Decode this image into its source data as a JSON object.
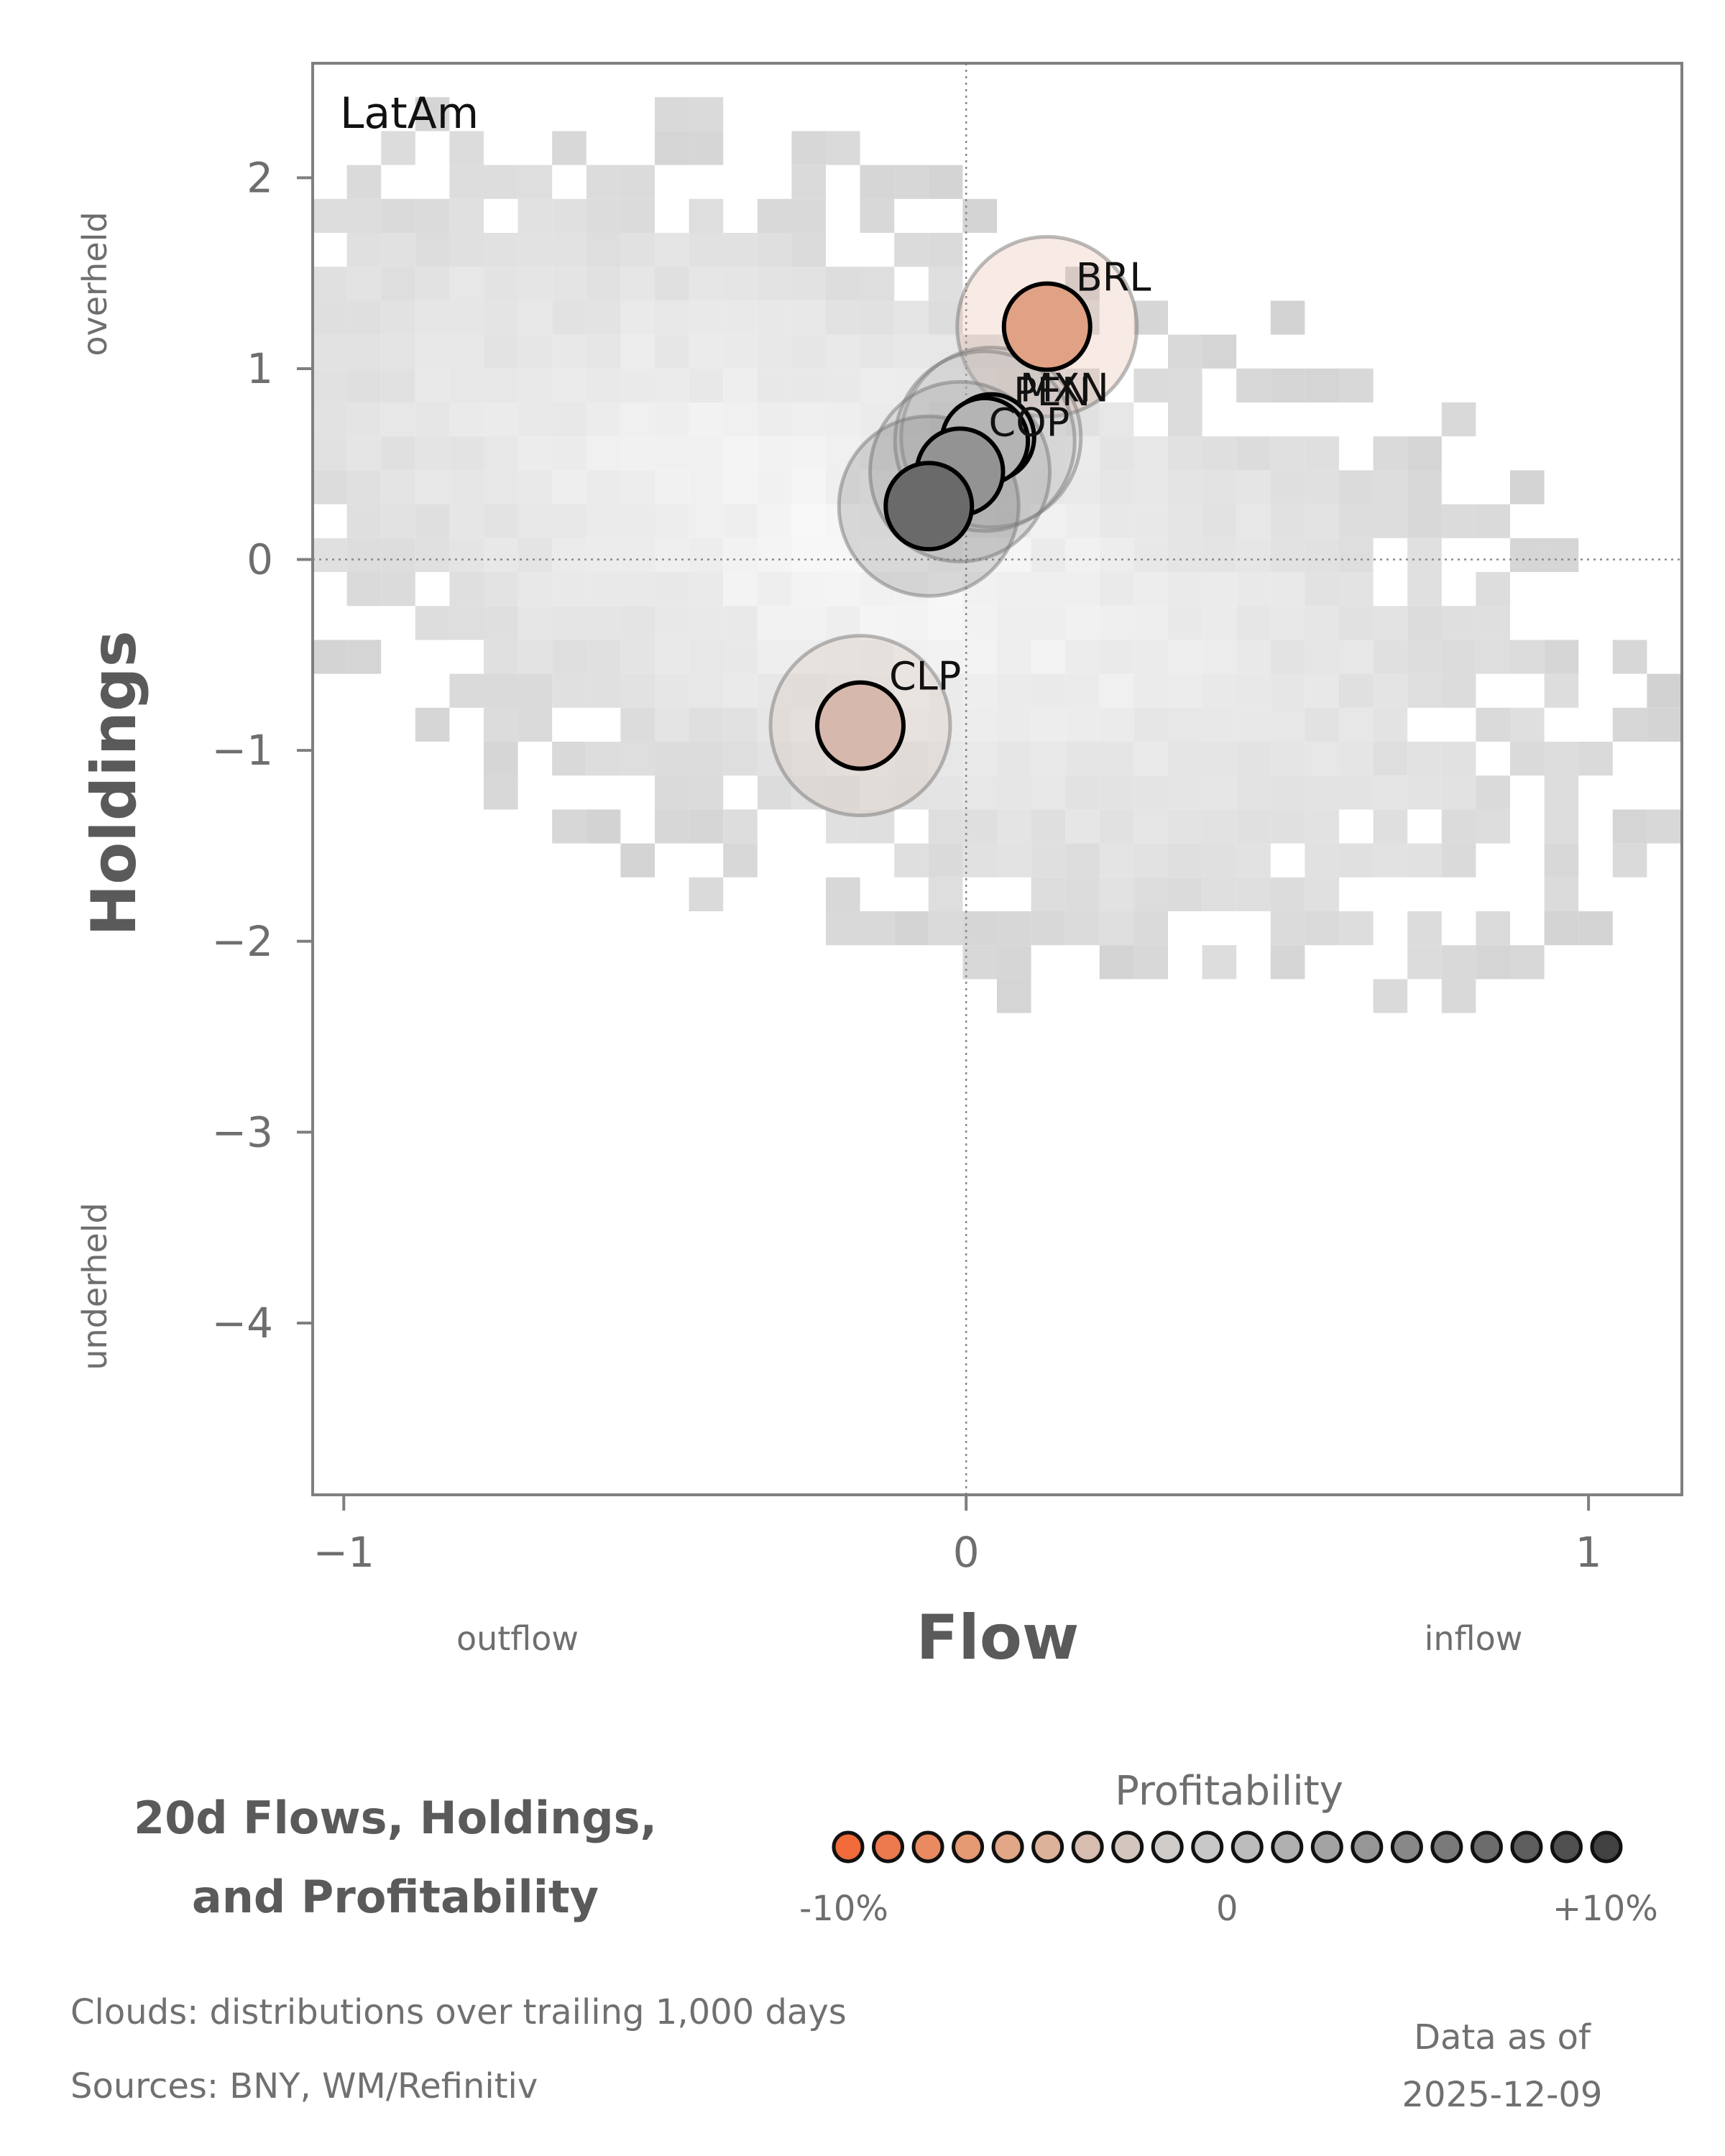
{
  "chart_data": {
    "type": "scatter",
    "panel_label": "LatAm",
    "title_lines": [
      "20d Flows, Holdings,",
      "and Profitability"
    ],
    "xlabel": "Flow",
    "ylabel": "Holdings",
    "x_direction_labels": {
      "low": "outflow",
      "high": "inflow"
    },
    "y_direction_labels": {
      "low": "underheld",
      "high": "overheld"
    },
    "xlim": [
      -1.05,
      1.15
    ],
    "ylim": [
      -4.9,
      2.6
    ],
    "x_ticks": [
      -1,
      0,
      1
    ],
    "x_tick_labels": [
      "−1",
      "0",
      "1"
    ],
    "y_ticks": [
      2,
      1,
      0,
      -1,
      -2,
      -3,
      -4
    ],
    "y_tick_labels": [
      "2",
      "1",
      "0",
      "−1",
      "−2",
      "−3",
      "−4"
    ],
    "reference_lines": {
      "x": 0,
      "y": 0,
      "style": "dotted"
    },
    "points": [
      {
        "label": "BRL",
        "x": 0.13,
        "y": 1.22,
        "profitability": -0.055,
        "color": "#e0a185"
      },
      {
        "label": "MXN",
        "x": 0.04,
        "y": 0.64,
        "profitability": 0.015,
        "color": "#bcbcbc"
      },
      {
        "label": "PEN",
        "x": 0.03,
        "y": 0.62,
        "profitability": 0.02,
        "color": "#b4b4b4"
      },
      {
        "label": "COP",
        "x": -0.01,
        "y": 0.46,
        "profitability": 0.045,
        "color": "#939393"
      },
      {
        "label": "",
        "x": -0.06,
        "y": 0.28,
        "profitability": 0.08,
        "color": "#6a6a6a"
      },
      {
        "label": "CLP",
        "x": -0.17,
        "y": -0.87,
        "profitability": -0.025,
        "color": "#d6b9ac"
      }
    ],
    "cloud_caption": "Clouds:  distributions over trailing 1,000 days",
    "legend": {
      "title": "Profitability",
      "tick_labels": [
        "-10%",
        "0",
        "+10%"
      ],
      "swatches": [
        "#f06a3a",
        "#ec7a4e",
        "#e98a60",
        "#e59a74",
        "#e1a786",
        "#dcb39a",
        "#d7bdaf",
        "#d2c6bf",
        "#cfcbc9",
        "#c8c8c8",
        "#bcbcbc",
        "#b0b0b0",
        "#a3a3a3",
        "#969696",
        "#888888",
        "#7a7a7a",
        "#6c6c6c",
        "#5e5e5e",
        "#505050",
        "#424242"
      ]
    }
  },
  "footer": {
    "clouds": "Clouds:  distributions over trailing 1,000 days",
    "sources": "Sources:  BNY, WM/Refinitiv",
    "asof_label": "Data as of",
    "asof_date": "2025-12-09"
  }
}
